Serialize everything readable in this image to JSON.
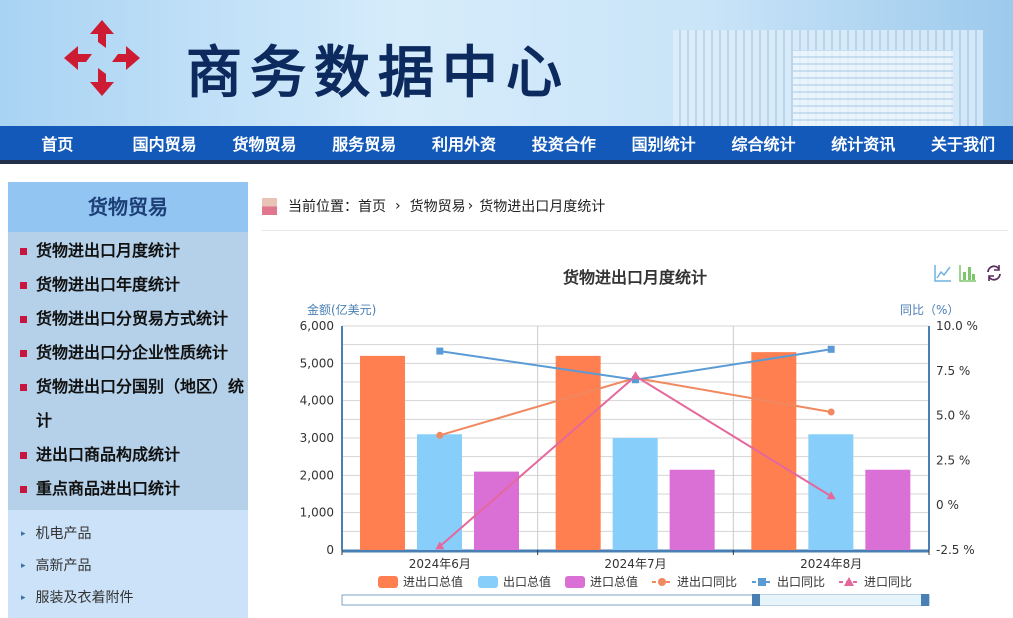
{
  "header": {
    "site_title": "商务数据中心"
  },
  "nav": [
    "首页",
    "国内贸易",
    "货物贸易",
    "服务贸易",
    "利用外资",
    "投资合作",
    "国别统计",
    "综合统计",
    "统计资讯",
    "关于我们"
  ],
  "sidebar": {
    "title": "货物贸易",
    "items": [
      "货物进出口月度统计",
      "货物进出口年度统计",
      "货物进出口分贸易方式统计",
      "货物进出口分企业性质统计",
      "货物进出口分国别（地区）统计",
      "进出口商品构成统计",
      "重点商品进出口统计"
    ],
    "sub_items": [
      "机电产品",
      "高新产品",
      "服装及衣着附件"
    ]
  },
  "breadcrumb": {
    "prefix": "当前位置：",
    "home": "首页",
    "sep": "›",
    "level1": "货物贸易",
    "current": "货物进出口月度统计"
  },
  "toolbox": {
    "icons": [
      "line-chart-icon",
      "bar-chart-icon",
      "refresh-icon"
    ]
  },
  "chart_data": {
    "type": "bar",
    "title": "货物进出口月度统计",
    "ylabel": "金额(亿美元)",
    "y2label": "同比（%）",
    "categories": [
      "2024年6月",
      "2024年7月",
      "2024年8月"
    ],
    "ylim": [
      0,
      6000
    ],
    "yticks": [
      "0",
      "1,000",
      "2,000",
      "3,000",
      "4,000",
      "5,000",
      "6,000"
    ],
    "y2lim": [
      -2.5,
      10
    ],
    "y2ticks": [
      "-2.5 %",
      "0 %",
      "2.5 %",
      "5.0 %",
      "7.5 %",
      "10.0 %"
    ],
    "grid": true,
    "legend_position": "bottom",
    "series": [
      {
        "name": "进出口总值",
        "type": "bar",
        "color": "#ff7f50",
        "values": [
          5200,
          5200,
          5300
        ]
      },
      {
        "name": "出口总值",
        "type": "bar",
        "color": "#87cefa",
        "values": [
          3100,
          3000,
          3100
        ]
      },
      {
        "name": "进口总值",
        "type": "bar",
        "color": "#da70d6",
        "values": [
          2100,
          2150,
          2150
        ]
      },
      {
        "name": "进出口同比",
        "type": "line",
        "axis": "right",
        "marker": "circle",
        "color": "#f08860",
        "values": [
          3.9,
          7.1,
          5.2
        ]
      },
      {
        "name": "出口同比",
        "type": "line",
        "axis": "right",
        "marker": "square",
        "color": "#5b9bd5",
        "values": [
          8.6,
          7.0,
          8.7
        ]
      },
      {
        "name": "进口同比",
        "type": "line",
        "axis": "right",
        "marker": "triangle",
        "color": "#e5689c",
        "values": [
          -2.3,
          7.2,
          0.5
        ]
      }
    ]
  }
}
